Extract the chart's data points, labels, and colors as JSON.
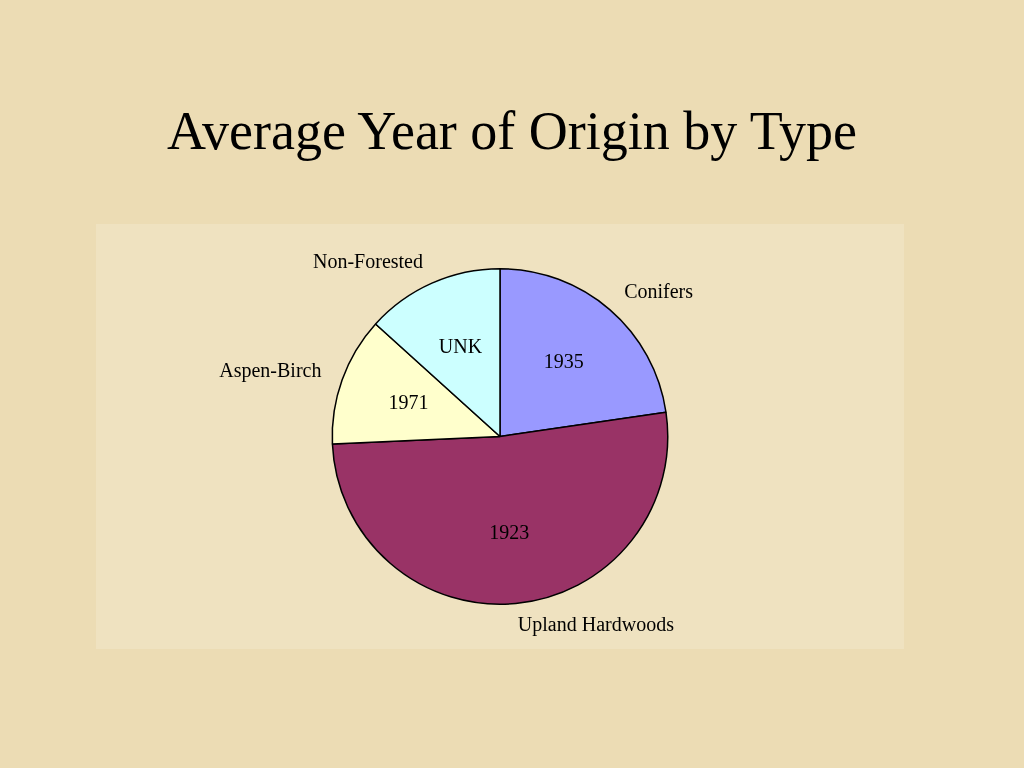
{
  "chart_data": {
    "type": "pie",
    "title": "Average Year of Origin by Type",
    "categories": [
      "Conifers",
      "Upland Hardwoods",
      "Aspen-Birch",
      "Non-Forested"
    ],
    "values": [
      22.7,
      51.6,
      12.4,
      13.3
    ],
    "colors": [
      "#9999ff",
      "#993366",
      "#ffffcc",
      "#ccffff"
    ],
    "annotations": [
      {
        "text": "1935",
        "x": "Conifers"
      },
      {
        "text": "1923",
        "x": "Upland Hardwoods"
      },
      {
        "text": "1971",
        "x": "Aspen-Birch"
      },
      {
        "text": "UNK",
        "x": "Non-Forested"
      }
    ],
    "legend": false
  }
}
